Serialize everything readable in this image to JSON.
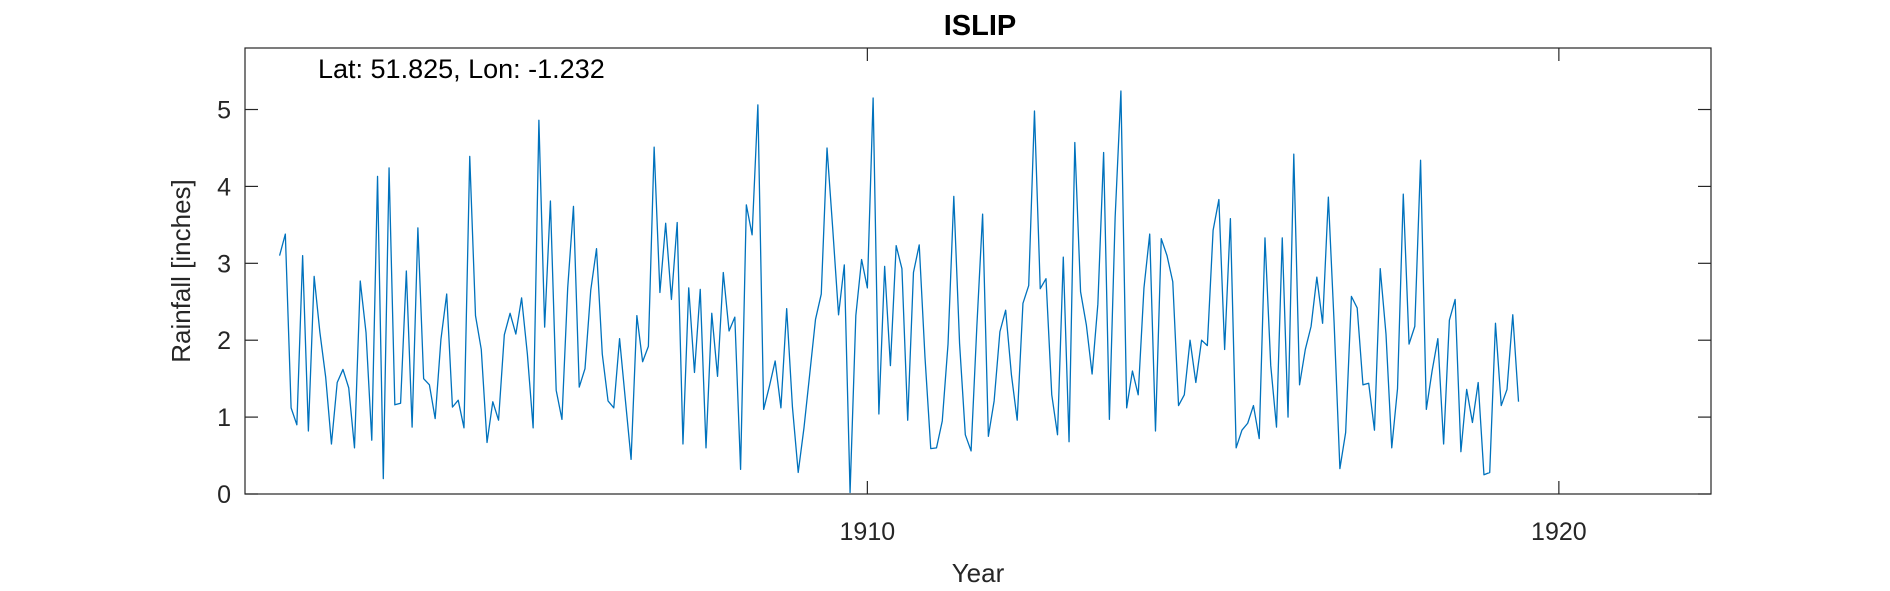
{
  "chart_data": {
    "type": "line",
    "title": "ISLIP",
    "annotation": "Lat: 51.825, Lon: -1.232",
    "xlabel": "Year",
    "ylabel": "Rainfall [inches]",
    "xlim": [
      1901.0,
      1922.2
    ],
    "ylim": [
      0,
      5.8
    ],
    "x_start": 1901.5,
    "x_step": 0.0833333,
    "x_ticks": [
      1910,
      1920
    ],
    "x_tick_labels": [
      "1910",
      "1920"
    ],
    "y_ticks": [
      0,
      1,
      2,
      3,
      4,
      5
    ],
    "y_tick_labels": [
      "0",
      "1",
      "2",
      "3",
      "4",
      "5"
    ],
    "grid": false,
    "line_color": "#0072BD",
    "series": [
      {
        "values": [
          3.1,
          3.38,
          1.12,
          0.9,
          3.1,
          0.82,
          2.83,
          2.1,
          1.52,
          0.65,
          1.45,
          1.62,
          1.38,
          0.6,
          2.77,
          2.1,
          0.7,
          4.13,
          0.2,
          4.24,
          1.16,
          1.18,
          2.9,
          0.87,
          3.46,
          1.5,
          1.42,
          0.98,
          2.01,
          2.6,
          1.13,
          1.22,
          0.86,
          4.39,
          2.32,
          1.88,
          0.67,
          1.2,
          0.96,
          2.07,
          2.35,
          2.08,
          2.55,
          1.82,
          0.86,
          4.86,
          2.17,
          3.81,
          1.35,
          0.97,
          2.68,
          3.74,
          1.39,
          1.63,
          2.65,
          3.19,
          1.82,
          1.21,
          1.12,
          2.02,
          1.23,
          0.45,
          2.32,
          1.72,
          1.92,
          4.51,
          2.62,
          3.52,
          2.53,
          3.53,
          0.65,
          2.68,
          1.58,
          2.66,
          0.6,
          2.35,
          1.53,
          2.88,
          2.12,
          2.3,
          0.32,
          3.76,
          3.37,
          5.06,
          1.1,
          1.4,
          1.73,
          1.12,
          2.41,
          1.13,
          0.28,
          0.86,
          1.56,
          2.27,
          2.6,
          4.5,
          3.44,
          2.33,
          2.98,
          0.02,
          2.32,
          3.05,
          2.68,
          5.15,
          1.04,
          2.96,
          1.67,
          3.23,
          2.93,
          0.96,
          2.88,
          3.24,
          1.78,
          0.59,
          0.6,
          0.95,
          1.95,
          3.87,
          1.96,
          0.77,
          0.56,
          2.18,
          3.64,
          0.75,
          1.21,
          2.11,
          2.39,
          1.55,
          0.96,
          2.48,
          2.71,
          4.98,
          2.67,
          2.8,
          1.29,
          0.77,
          3.08,
          0.68,
          4.57,
          2.63,
          2.2,
          1.56,
          2.47,
          4.44,
          0.97,
          3.6,
          5.24,
          1.12,
          1.6,
          1.29,
          2.68,
          3.38,
          0.82,
          3.32,
          3.1,
          2.76,
          1.15,
          1.29,
          2.0,
          1.45,
          2.0,
          1.93,
          3.43,
          3.83,
          1.88,
          3.58,
          0.6,
          0.83,
          0.92,
          1.15,
          0.72,
          3.33,
          1.67,
          0.87,
          3.33,
          1.0,
          4.42,
          1.42,
          1.88,
          2.18,
          2.82,
          2.22,
          3.86,
          2.22,
          0.33,
          0.8,
          2.57,
          2.42,
          1.42,
          1.44,
          0.83,
          2.93,
          2.08,
          0.6,
          1.37,
          3.9,
          1.95,
          2.18,
          4.34,
          1.1,
          1.6,
          2.02,
          0.65,
          2.26,
          2.53,
          0.55,
          1.36,
          0.93,
          1.45,
          0.25,
          0.28,
          2.22,
          1.15,
          1.36,
          2.33,
          1.2
        ]
      }
    ]
  }
}
